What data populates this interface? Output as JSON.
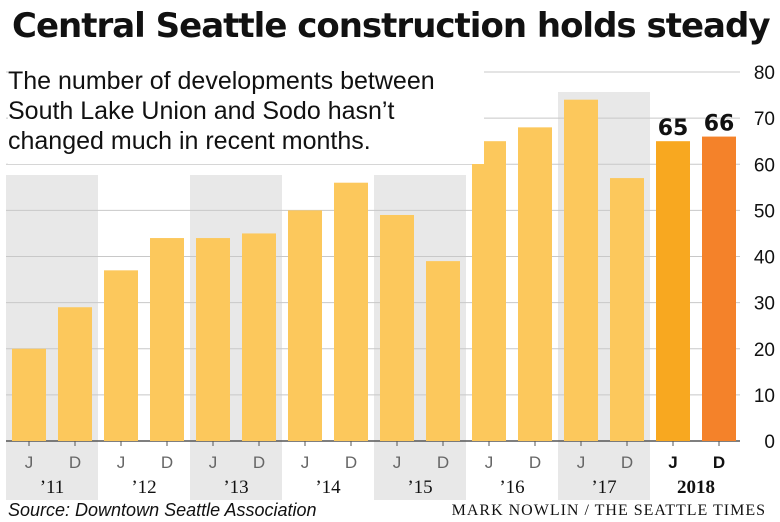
{
  "title": "Central Seattle construction holds steady",
  "subtitle": "The number of developments between South Lake Union and Sodo hasn’t changed much in recent months.",
  "source": "Source: Downtown Seattle Association",
  "credit": "MARK NOWLIN / THE SEATTLE TIMES",
  "colors": {
    "bar": "#fcc85c",
    "bar_2018_j": "#f8a820",
    "bar_2018_d": "#f4822a",
    "shade": "#e8e8e8",
    "grid": "#c8c8c8",
    "text": "#111111"
  },
  "chart_data": {
    "type": "bar",
    "categories": [
      "J",
      "D",
      "J",
      "D",
      "J",
      "D",
      "J",
      "D",
      "J",
      "D",
      "J",
      "D",
      "J",
      "D",
      "J",
      "D"
    ],
    "year_labels": [
      "’11",
      "’12",
      "’13",
      "’14",
      "’15",
      "’16",
      "’17",
      "2018"
    ],
    "values": [
      20,
      29,
      37,
      44,
      44,
      45,
      50,
      56,
      49,
      39,
      65,
      68,
      74,
      57,
      65,
      66
    ],
    "highlight_labels": [
      "65",
      "66"
    ],
    "yticks": [
      0,
      10,
      20,
      30,
      40,
      50,
      60,
      70,
      80
    ],
    "ylim": [
      0,
      80
    ],
    "grid": true,
    "shaded_years": [
      "’11",
      "’13",
      "’15",
      "’17"
    ]
  }
}
